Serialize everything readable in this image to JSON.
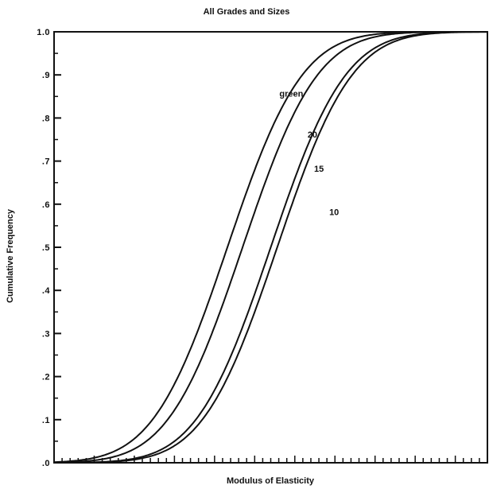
{
  "chart_data": {
    "type": "line",
    "title": "All Grades and Sizes",
    "xlabel": "Modulus of Elasticity",
    "ylabel": "Cumulative Frequency",
    "ylim": [
      0,
      1
    ],
    "y_ticks": [
      {
        "v": 0.0,
        "label": ".0"
      },
      {
        "v": 0.1,
        "label": ".1"
      },
      {
        "v": 0.2,
        "label": ".2"
      },
      {
        "v": 0.3,
        "label": ".3"
      },
      {
        "v": 0.4,
        "label": ".4"
      },
      {
        "v": 0.5,
        "label": ".5"
      },
      {
        "v": 0.6,
        "label": ".6"
      },
      {
        "v": 0.7,
        "label": ".7"
      },
      {
        "v": 0.8,
        "label": ".8"
      },
      {
        "v": 0.9,
        "label": ".9"
      },
      {
        "v": 1.0,
        "label": "1.0"
      }
    ],
    "x_tick_count": 54,
    "grid": false,
    "series": [
      {
        "name": "green",
        "label_at": [
          0.52,
          0.85
        ],
        "mu": 0.4,
        "sigma": 0.135
      },
      {
        "name": "20",
        "label_at": [
          0.585,
          0.755
        ],
        "mu": 0.435,
        "sigma": 0.135
      },
      {
        "name": "15",
        "label_at": [
          0.6,
          0.675
        ],
        "mu": 0.5,
        "sigma": 0.135
      },
      {
        "name": "10",
        "label_at": [
          0.635,
          0.575
        ],
        "mu": 0.515,
        "sigma": 0.135
      }
    ]
  }
}
